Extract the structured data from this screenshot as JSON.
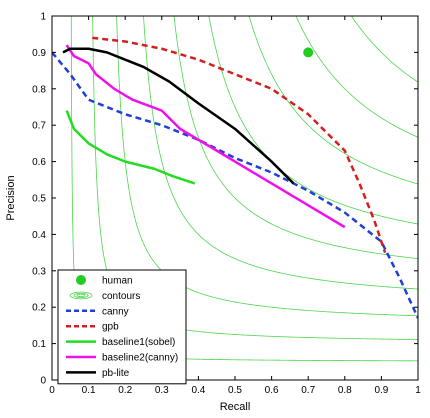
{
  "chart_data": {
    "type": "line",
    "xlabel": "Recall",
    "ylabel": "Precision",
    "xlim": [
      0,
      1
    ],
    "ylim": [
      0,
      1
    ],
    "xticks": [
      "0",
      "0.1",
      "0.2",
      "0.3",
      "0.4",
      "0.5",
      "0.6",
      "0.7",
      "0.8",
      "0.9",
      "1"
    ],
    "yticks": [
      "0",
      "0.1",
      "0.2",
      "0.3",
      "0.4",
      "0.5",
      "0.6",
      "0.7",
      "0.8",
      "0.9",
      "1"
    ],
    "grid": false,
    "legend_position": "bottom-left",
    "human": {
      "name": "human",
      "x": 0.7,
      "y": 0.9,
      "color": "#22cc22",
      "marker": "circle"
    },
    "contours": {
      "name": "contours",
      "color": "#4dd64d",
      "f_levels": [
        0.1,
        0.2,
        0.3,
        0.4,
        0.5,
        0.6,
        0.7,
        0.8,
        0.9
      ]
    },
    "series": [
      {
        "name": "canny",
        "color": "#1f3fd6",
        "dash": "dashed",
        "points": [
          [
            0.0,
            0.9
          ],
          [
            0.05,
            0.84
          ],
          [
            0.1,
            0.77
          ],
          [
            0.15,
            0.75
          ],
          [
            0.2,
            0.73
          ],
          [
            0.3,
            0.7
          ],
          [
            0.4,
            0.66
          ],
          [
            0.5,
            0.61
          ],
          [
            0.6,
            0.57
          ],
          [
            0.7,
            0.52
          ],
          [
            0.8,
            0.46
          ],
          [
            0.9,
            0.38
          ],
          [
            0.95,
            0.28
          ],
          [
            1.0,
            0.17
          ]
        ]
      },
      {
        "name": "gpb",
        "color": "#d41f1f",
        "dash": "dashed",
        "points": [
          [
            0.11,
            0.94
          ],
          [
            0.2,
            0.93
          ],
          [
            0.3,
            0.91
          ],
          [
            0.4,
            0.88
          ],
          [
            0.5,
            0.84
          ],
          [
            0.6,
            0.8
          ],
          [
            0.7,
            0.73
          ],
          [
            0.8,
            0.63
          ],
          [
            0.84,
            0.54
          ],
          [
            0.88,
            0.44
          ],
          [
            0.91,
            0.35
          ]
        ]
      },
      {
        "name": "baseline1(sobel)",
        "color": "#22dd22",
        "dash": "solid",
        "points": [
          [
            0.04,
            0.74
          ],
          [
            0.06,
            0.69
          ],
          [
            0.1,
            0.65
          ],
          [
            0.15,
            0.62
          ],
          [
            0.2,
            0.6
          ],
          [
            0.28,
            0.58
          ],
          [
            0.33,
            0.56
          ],
          [
            0.39,
            0.54
          ]
        ]
      },
      {
        "name": "baseline2(canny)",
        "color": "#ee11ee",
        "dash": "solid",
        "points": [
          [
            0.04,
            0.92
          ],
          [
            0.06,
            0.89
          ],
          [
            0.1,
            0.87
          ],
          [
            0.12,
            0.84
          ],
          [
            0.17,
            0.8
          ],
          [
            0.22,
            0.77
          ],
          [
            0.3,
            0.74
          ],
          [
            0.35,
            0.69
          ],
          [
            0.4,
            0.66
          ],
          [
            0.5,
            0.6
          ],
          [
            0.6,
            0.54
          ],
          [
            0.7,
            0.48
          ],
          [
            0.8,
            0.42
          ]
        ]
      },
      {
        "name": "pb-lite",
        "color": "#000000",
        "dash": "solid",
        "points": [
          [
            0.03,
            0.9
          ],
          [
            0.05,
            0.91
          ],
          [
            0.1,
            0.91
          ],
          [
            0.15,
            0.9
          ],
          [
            0.2,
            0.88
          ],
          [
            0.25,
            0.86
          ],
          [
            0.32,
            0.82
          ],
          [
            0.4,
            0.76
          ],
          [
            0.5,
            0.69
          ],
          [
            0.6,
            0.6
          ],
          [
            0.66,
            0.54
          ]
        ]
      }
    ],
    "legend": [
      "human",
      "contours",
      "canny",
      "gpb",
      "baseline1(sobel)",
      "baseline2(canny)",
      "pb-lite"
    ]
  }
}
